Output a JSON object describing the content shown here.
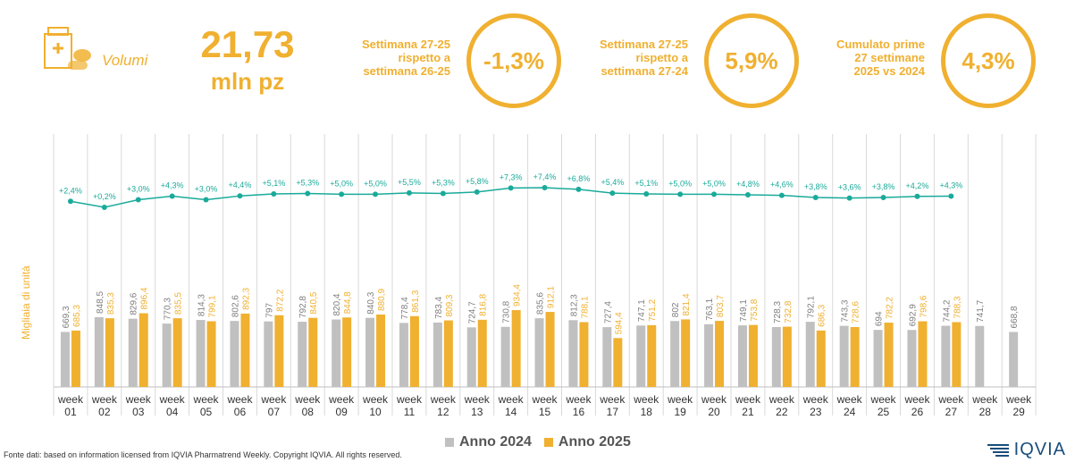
{
  "header": {
    "volumi_label": "Volumi",
    "volumi_value": "21,73",
    "volumi_unit": "mln pz",
    "kpis": [
      {
        "desc_lines": [
          "Settimana 27-25",
          "rispetto a",
          "settimana 26-25"
        ],
        "value": "-1,3%"
      },
      {
        "desc_lines": [
          "Settimana 27-25",
          "rispetto a",
          "settimana 27-24"
        ],
        "value": "5,9%"
      },
      {
        "desc_lines": [
          "Cumulato prime",
          "27 settimane",
          "2025 vs 2024"
        ],
        "value": "4,3%"
      }
    ]
  },
  "colors": {
    "accent": "#f0b030",
    "series_2024": "#c0c0c0",
    "series_2025": "#f0b030",
    "growth_line": "#1aaa9a"
  },
  "chart_data": {
    "type": "bar",
    "ylabel": "Migliaia di unità",
    "categories": [
      "week 01",
      "week 02",
      "week 03",
      "week 04",
      "week 05",
      "week 06",
      "week 07",
      "week 08",
      "week 09",
      "week 10",
      "week 11",
      "week 12",
      "week 13",
      "week 14",
      "week 15",
      "week 16",
      "week 17",
      "week 18",
      "week 19",
      "week 20",
      "week 21",
      "week 22",
      "week 23",
      "week 24",
      "week 25",
      "week 26",
      "week 27",
      "week 28",
      "week 29"
    ],
    "series": [
      {
        "name": "Anno 2024",
        "values": [
          669.3,
          848.5,
          829.6,
          770.3,
          814.3,
          802.6,
          797,
          792.8,
          820.4,
          840.3,
          778.4,
          783.4,
          724.7,
          730.8,
          835.6,
          812.3,
          727.4,
          747.1,
          802,
          763.1,
          749.1,
          728.3,
          792.1,
          743.3,
          694,
          692.9,
          744.2,
          741.7,
          668.8
        ],
        "labels": [
          "669,3",
          "848,5",
          "829,6",
          "770,3",
          "814,3",
          "802,6",
          "797",
          "792,8",
          "820,4",
          "840,3",
          "778,4",
          "783,4",
          "724,7",
          "730,8",
          "835,6",
          "812,3",
          "727,4",
          "747,1",
          "802",
          "763,1",
          "749,1",
          "728,3",
          "792,1",
          "743,3",
          "694",
          "692,9",
          "744,2",
          "741,7",
          "668,8"
        ]
      },
      {
        "name": "Anno 2025",
        "values": [
          685.3,
          835.3,
          896.4,
          835.5,
          799.1,
          892.3,
          872.2,
          840.5,
          844.8,
          880.9,
          861.3,
          809.3,
          816.8,
          934.4,
          912.1,
          788.1,
          594.4,
          751.2,
          821.4,
          803.7,
          753.8,
          732.8,
          686.3,
          728.6,
          782.2,
          798.6,
          788.3,
          null,
          null
        ],
        "labels": [
          "685,3",
          "835,3",
          "896,4",
          "835,5",
          "799,1",
          "892,3",
          "872,2",
          "840,5",
          "844,8",
          "880,9",
          "861,3",
          "809,3",
          "816,8",
          "934,4",
          "912,1",
          "788,1",
          "594,4",
          "751,2",
          "821,4",
          "803,7",
          "753,8",
          "732,8",
          "686,3",
          "728,6",
          "782,2",
          "798,6",
          "788,3",
          null,
          null
        ]
      }
    ],
    "growth": {
      "values": [
        2.4,
        0.2,
        3.0,
        4.3,
        3.0,
        4.4,
        5.1,
        5.3,
        5.0,
        5.0,
        5.5,
        5.3,
        5.8,
        7.3,
        7.4,
        6.8,
        5.4,
        5.1,
        5.0,
        5.0,
        4.8,
        4.6,
        3.8,
        3.6,
        3.8,
        4.2,
        4.3
      ],
      "labels": [
        "+2,4%",
        "+0,2%",
        "+3,0%",
        "+4,3%",
        "+3,0%",
        "+4,4%",
        "+5,1%",
        "+5,3%",
        "+5,0%",
        "+5,0%",
        "+5,5%",
        "+5,3%",
        "+5,8%",
        "+7,3%",
        "+7,4%",
        "+6,8%",
        "+5,4%",
        "+5,1%",
        "+5,0%",
        "+5,0%",
        "+4,8%",
        "+4,6%",
        "+3,8%",
        "+3,6%",
        "+3,8%",
        "+4,2%",
        "+4,3%"
      ]
    },
    "legend": [
      "Anno 2024",
      "Anno 2025"
    ],
    "legend_position": "bottom"
  },
  "footer": {
    "source": "Fonte dati: based on information licensed from IQVIA Pharmatrend Weekly. Copyright IQVIA. All rights reserved.",
    "logo": "IQVIA"
  }
}
